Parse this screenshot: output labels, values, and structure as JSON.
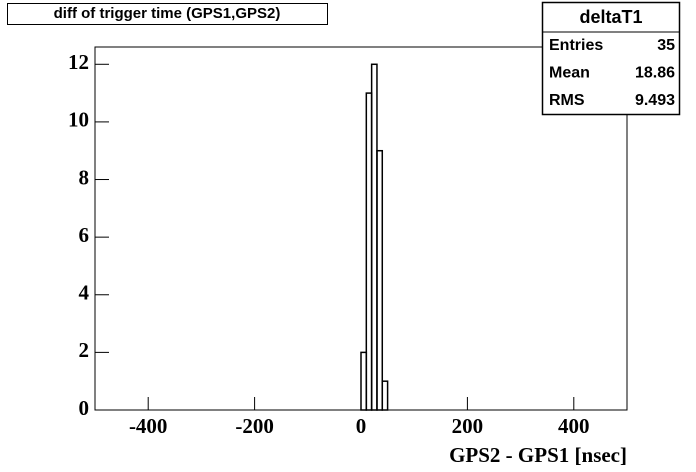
{
  "chart_data": {
    "type": "histogram",
    "title": "diff of trigger time (GPS1,GPS2)",
    "x_label": "GPS2 - GPS1 [nsec]",
    "bins": [
      0,
      10,
      20,
      30,
      40,
      50
    ],
    "counts": [
      2,
      11,
      12,
      9,
      1
    ],
    "color": "#000000",
    "xlim": [
      -500,
      500
    ],
    "xticks": [
      -400,
      -200,
      0,
      200,
      400
    ],
    "ylim": [
      0,
      12.6
    ],
    "yticks": [
      0,
      2,
      4,
      6,
      8,
      10,
      12
    ],
    "stats": {
      "title": "deltaT1",
      "rows": [
        {
          "label": "Entries",
          "value": 35
        },
        {
          "label": "Mean",
          "value": 18.86
        },
        {
          "label": "RMS",
          "value": 9.493
        }
      ]
    }
  }
}
